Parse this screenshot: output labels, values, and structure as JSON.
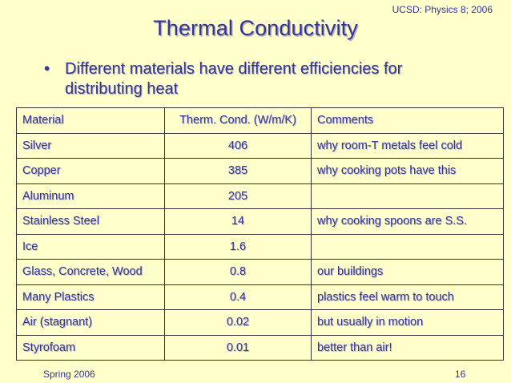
{
  "header_note": "UCSD: Physics 8; 2006",
  "title": "Thermal Conductivity",
  "bullet": {
    "marker": "•",
    "text": "Different materials have different efficiencies for distributing heat"
  },
  "table": {
    "headers": [
      "Material",
      "Therm. Cond. (W/m/K)",
      "Comments"
    ],
    "rows": [
      {
        "material": "Silver",
        "value": "406",
        "comment": "why room-T metals feel cold"
      },
      {
        "material": "Copper",
        "value": "385",
        "comment": "why cooking pots have this"
      },
      {
        "material": "Aluminum",
        "value": "205",
        "comment": ""
      },
      {
        "material": "Stainless Steel",
        "value": "14",
        "comment": "why cooking spoons are S.S."
      },
      {
        "material": "Ice",
        "value": "1.6",
        "comment": ""
      },
      {
        "material": "Glass, Concrete, Wood",
        "value": "0.8",
        "comment": "our buildings"
      },
      {
        "material": "Many Plastics",
        "value": "0.4",
        "comment": "plastics feel warm to touch"
      },
      {
        "material": "Air (stagnant)",
        "value": "0.02",
        "comment": "but usually in motion"
      },
      {
        "material": "Styrofoam",
        "value": "0.01",
        "comment": "better than air!"
      }
    ]
  },
  "footer": {
    "left": "Spring 2006",
    "page_number": "16"
  },
  "colors": {
    "background": "#FFFFCC",
    "text": "#333399",
    "border": "#333333"
  }
}
